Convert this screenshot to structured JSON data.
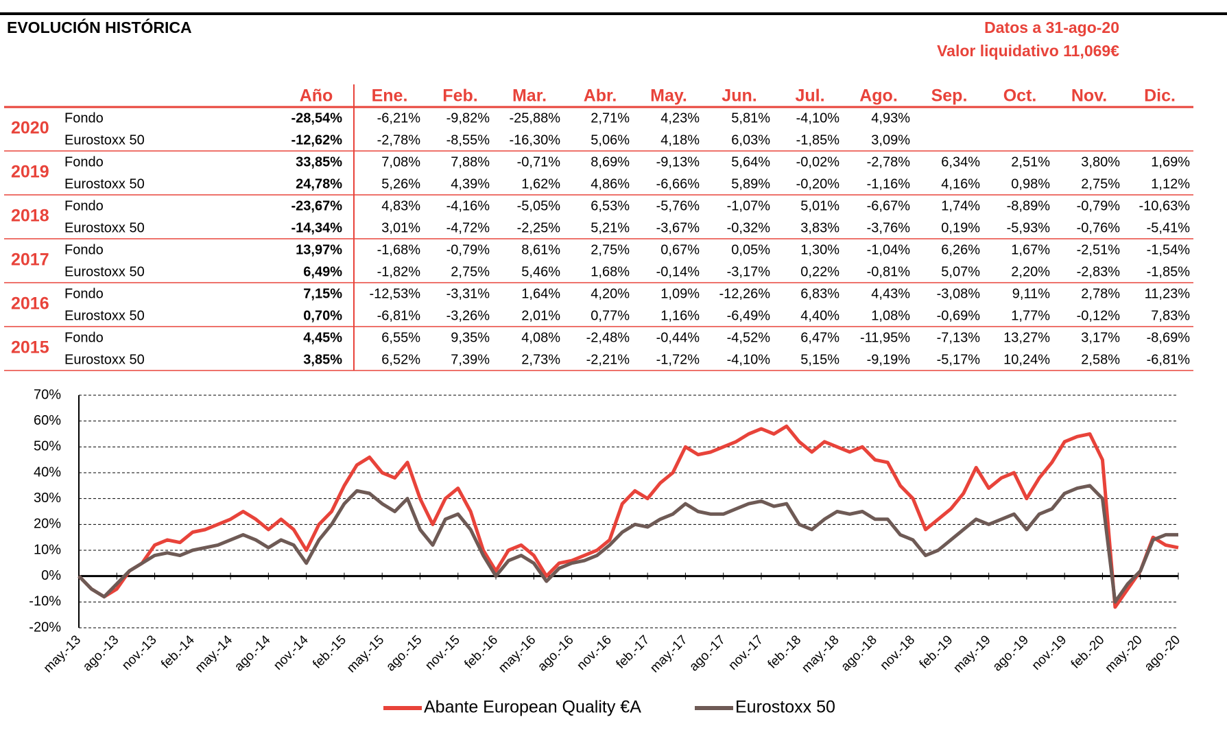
{
  "header": {
    "title": "EVOLUCIÓN HISTÓRICA",
    "date": "Datos a 31-ago-20",
    "nav": "Valor liquidativo 11,069€"
  },
  "table": {
    "header": [
      "Año",
      "Ene.",
      "Feb.",
      "Mar.",
      "Abr.",
      "May.",
      "Jun.",
      "Jul.",
      "Ago.",
      "Sep.",
      "Oct.",
      "Nov.",
      "Dic."
    ],
    "groups": [
      {
        "year": "2020",
        "rows": [
          {
            "name": "Fondo",
            "total": "-28,54%",
            "months": [
              "-6,21%",
              "-9,82%",
              "-25,88%",
              "2,71%",
              "4,23%",
              "5,81%",
              "-4,10%",
              "4,93%"
            ]
          },
          {
            "name": "Eurostoxx 50",
            "total": "-12,62%",
            "months": [
              "-2,78%",
              "-8,55%",
              "-16,30%",
              "5,06%",
              "4,18%",
              "6,03%",
              "-1,85%",
              "3,09%"
            ]
          }
        ]
      },
      {
        "year": "2019",
        "rows": [
          {
            "name": "Fondo",
            "total": "33,85%",
            "months": [
              "7,08%",
              "7,88%",
              "-0,71%",
              "8,69%",
              "-9,13%",
              "5,64%",
              "-0,02%",
              "-2,78%",
              "6,34%",
              "2,51%",
              "3,80%",
              "1,69%"
            ]
          },
          {
            "name": "Eurostoxx 50",
            "total": "24,78%",
            "months": [
              "5,26%",
              "4,39%",
              "1,62%",
              "4,86%",
              "-6,66%",
              "5,89%",
              "-0,20%",
              "-1,16%",
              "4,16%",
              "0,98%",
              "2,75%",
              "1,12%"
            ]
          }
        ]
      },
      {
        "year": "2018",
        "rows": [
          {
            "name": "Fondo",
            "total": "-23,67%",
            "months": [
              "4,83%",
              "-4,16%",
              "-5,05%",
              "6,53%",
              "-5,76%",
              "-1,07%",
              "5,01%",
              "-6,67%",
              "1,74%",
              "-8,89%",
              "-0,79%",
              "-10,63%"
            ]
          },
          {
            "name": "Eurostoxx 50",
            "total": "-14,34%",
            "months": [
              "3,01%",
              "-4,72%",
              "-2,25%",
              "5,21%",
              "-3,67%",
              "-0,32%",
              "3,83%",
              "-3,76%",
              "0,19%",
              "-5,93%",
              "-0,76%",
              "-5,41%"
            ]
          }
        ]
      },
      {
        "year": "2017",
        "rows": [
          {
            "name": "Fondo",
            "total": "13,97%",
            "months": [
              "-1,68%",
              "-0,79%",
              "8,61%",
              "2,75%",
              "0,67%",
              "0,05%",
              "1,30%",
              "-1,04%",
              "6,26%",
              "1,67%",
              "-2,51%",
              "-1,54%"
            ]
          },
          {
            "name": "Eurostoxx 50",
            "total": "6,49%",
            "months": [
              "-1,82%",
              "2,75%",
              "5,46%",
              "1,68%",
              "-0,14%",
              "-3,17%",
              "0,22%",
              "-0,81%",
              "5,07%",
              "2,20%",
              "-2,83%",
              "-1,85%"
            ]
          }
        ]
      },
      {
        "year": "2016",
        "rows": [
          {
            "name": "Fondo",
            "total": "7,15%",
            "months": [
              "-12,53%",
              "-3,31%",
              "1,64%",
              "4,20%",
              "1,09%",
              "-12,26%",
              "6,83%",
              "4,43%",
              "-3,08%",
              "9,11%",
              "2,78%",
              "11,23%"
            ]
          },
          {
            "name": "Eurostoxx 50",
            "total": "0,70%",
            "months": [
              "-6,81%",
              "-3,26%",
              "2,01%",
              "0,77%",
              "1,16%",
              "-6,49%",
              "4,40%",
              "1,08%",
              "-0,69%",
              "1,77%",
              "-0,12%",
              "7,83%"
            ]
          }
        ]
      },
      {
        "year": "2015",
        "rows": [
          {
            "name": "Fondo",
            "total": "4,45%",
            "months": [
              "6,55%",
              "9,35%",
              "4,08%",
              "-2,48%",
              "-0,44%",
              "-4,52%",
              "6,47%",
              "-11,95%",
              "-7,13%",
              "13,27%",
              "3,17%",
              "-8,69%"
            ]
          },
          {
            "name": "Eurostoxx 50",
            "total": "3,85%",
            "months": [
              "6,52%",
              "7,39%",
              "2,73%",
              "-2,21%",
              "-1,72%",
              "-4,10%",
              "5,15%",
              "-9,19%",
              "-5,17%",
              "10,24%",
              "2,58%",
              "-6,81%"
            ]
          }
        ]
      }
    ]
  },
  "chart_data": {
    "type": "line",
    "ylim": [
      -20,
      70
    ],
    "yticks": [
      {
        "value": -20,
        "label": "-20%"
      },
      {
        "value": -10,
        "label": "-10%"
      },
      {
        "value": 0,
        "label": "0%"
      },
      {
        "value": 10,
        "label": "10%"
      },
      {
        "value": 20,
        "label": "20%"
      },
      {
        "value": 30,
        "label": "30%"
      },
      {
        "value": 40,
        "label": "40%"
      },
      {
        "value": 50,
        "label": "50%"
      },
      {
        "value": 60,
        "label": "60%"
      },
      {
        "value": 70,
        "label": "70%"
      }
    ],
    "grid": true,
    "categories": [
      "may.-13",
      null,
      null,
      "ago.-13",
      null,
      null,
      "nov.-13",
      null,
      null,
      "feb.-14",
      null,
      null,
      "may.-14",
      null,
      null,
      "ago.-14",
      null,
      null,
      "nov.-14",
      null,
      null,
      "feb.-15",
      null,
      null,
      "may.-15",
      null,
      null,
      "ago.-15",
      null,
      null,
      "nov.-15",
      null,
      null,
      "feb.-16",
      null,
      null,
      "may.-16",
      null,
      null,
      "ago.-16",
      null,
      null,
      "nov.-16",
      null,
      null,
      "feb.-17",
      null,
      null,
      "may.-17",
      null,
      null,
      "ago.-17",
      null,
      null,
      "nov.-17",
      null,
      null,
      "feb.-18",
      null,
      null,
      "may.-18",
      null,
      null,
      "ago.-18",
      null,
      null,
      "nov.-18",
      null,
      null,
      "feb.-19",
      null,
      null,
      "may.-19",
      null,
      null,
      "ago.-19",
      null,
      null,
      "nov.-19",
      null,
      null,
      "feb.-20",
      null,
      null,
      "may.-20",
      null,
      null,
      "ago.-20"
    ],
    "series": [
      {
        "name": "Abante European Quality €A",
        "color": "#e8433a",
        "values": [
          0,
          -5,
          -8,
          -5,
          2,
          5,
          12,
          14,
          13,
          17,
          18,
          20,
          22,
          25,
          22,
          18,
          22,
          18,
          10,
          20,
          25,
          35,
          43,
          46,
          40,
          38,
          44,
          30,
          20,
          30,
          34,
          25,
          10,
          2,
          10,
          12,
          8,
          0,
          5,
          6,
          8,
          10,
          14,
          28,
          33,
          30,
          36,
          40,
          50,
          47,
          48,
          50,
          52,
          55,
          57,
          55,
          58,
          52,
          48,
          52,
          50,
          48,
          50,
          45,
          44,
          35,
          30,
          18,
          22,
          26,
          32,
          42,
          34,
          38,
          40,
          30,
          38,
          44,
          52,
          54,
          55,
          45,
          -12,
          -5,
          2,
          15,
          12,
          11
        ]
      },
      {
        "name": "Eurostoxx 50",
        "color": "#6e5a55",
        "values": [
          0,
          -5,
          -8,
          -3,
          2,
          5,
          8,
          9,
          8,
          10,
          11,
          12,
          14,
          16,
          14,
          11,
          14,
          12,
          5,
          14,
          20,
          28,
          33,
          32,
          28,
          25,
          30,
          18,
          12,
          22,
          24,
          18,
          8,
          0,
          6,
          8,
          5,
          -2,
          3,
          5,
          6,
          8,
          12,
          17,
          20,
          19,
          22,
          24,
          28,
          25,
          24,
          24,
          26,
          28,
          29,
          27,
          28,
          20,
          18,
          22,
          25,
          24,
          25,
          22,
          22,
          16,
          14,
          8,
          10,
          14,
          18,
          22,
          20,
          22,
          24,
          18,
          24,
          26,
          32,
          34,
          35,
          30,
          -10,
          -3,
          2,
          14,
          16,
          16
        ]
      }
    ]
  }
}
